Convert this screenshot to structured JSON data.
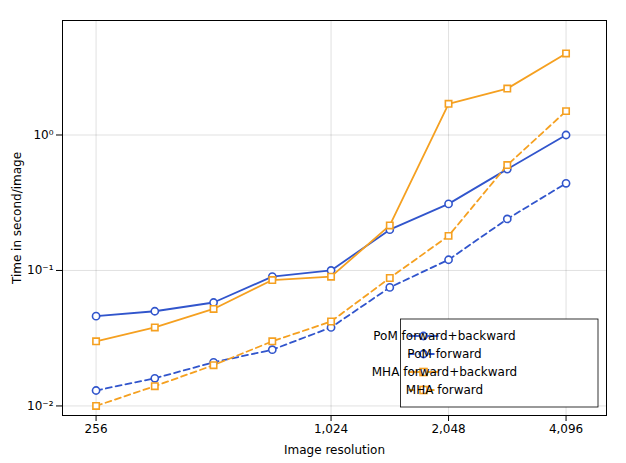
{
  "chart_data": {
    "type": "line",
    "x": [
      256,
      362,
      512,
      724,
      1024,
      1448,
      2048,
      2896,
      4096
    ],
    "series": [
      {
        "name": "PoM forward+backward",
        "color": "#3155cc",
        "marker": "circle",
        "line_style": "solid",
        "values": [
          0.046,
          0.05,
          0.058,
          0.09,
          0.1,
          0.2,
          0.31,
          0.56,
          1.0
        ]
      },
      {
        "name": "PoM forward",
        "color": "#3155cc",
        "marker": "circle",
        "line_style": "dashed",
        "values": [
          0.013,
          0.016,
          0.021,
          0.026,
          0.038,
          0.075,
          0.12,
          0.24,
          0.44
        ]
      },
      {
        "name": "MHA forward+backward",
        "color": "#f5a020",
        "marker": "square",
        "line_style": "solid",
        "values": [
          0.03,
          0.038,
          0.052,
          0.085,
          0.09,
          0.215,
          1.7,
          2.2,
          4.0
        ]
      },
      {
        "name": "MHA forward",
        "color": "#f5a020",
        "marker": "square",
        "line_style": "dashed",
        "values": [
          0.01,
          0.014,
          0.02,
          0.03,
          0.042,
          0.088,
          0.18,
          0.6,
          1.5
        ]
      }
    ],
    "xlabel": "Image resolution",
    "ylabel": "Time in second/image",
    "log": true,
    "xlim": [
      210,
      5200
    ],
    "ylim": [
      0.0085,
      7.0
    ],
    "xticks": [
      256,
      {
        "value": 1024,
        "label": "1,024"
      },
      {
        "value": 2048,
        "label": "2,048"
      },
      {
        "value": 4096,
        "label": "4,096"
      }
    ],
    "yticks": [
      {
        "value": 0.01,
        "label": "10⁻²"
      },
      {
        "value": 0.1,
        "label": "10⁻¹"
      },
      {
        "value": 1.0,
        "label": "10⁰"
      }
    ],
    "grid": true,
    "legend": "lower right"
  }
}
